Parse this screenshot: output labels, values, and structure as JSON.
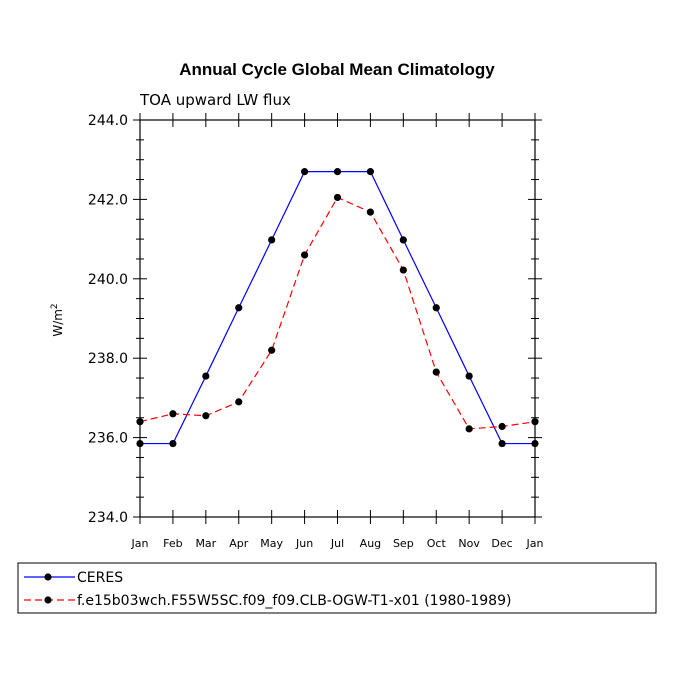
{
  "chart_data": {
    "type": "line",
    "title": "Annual Cycle Global Mean Climatology",
    "subtitle": "TOA upward LW flux",
    "xlabel": "",
    "ylabel": "W/m",
    "ylabel_superscript": "2",
    "ylim": [
      234.0,
      244.0
    ],
    "yticks": [
      "234.0",
      "236.0",
      "238.0",
      "240.0",
      "242.0",
      "244.0"
    ],
    "ytick_values": [
      234,
      236,
      238,
      240,
      242,
      244
    ],
    "categories": [
      "Jan",
      "Feb",
      "Mar",
      "Apr",
      "May",
      "Jun",
      "Jul",
      "Aug",
      "Sep",
      "Oct",
      "Nov",
      "Dec",
      "Jan"
    ],
    "series": [
      {
        "name": "CERES",
        "color": "#0000ff",
        "dash": "solid",
        "values": [
          235.85,
          235.85,
          237.55,
          239.27,
          240.98,
          242.7,
          242.7,
          242.7,
          240.98,
          239.27,
          237.55,
          235.85,
          235.85
        ]
      },
      {
        "name": "f.e15b03wch.F55W5SC.f09_f09.CLB-OGW-T1-x01 (1980-1989)",
        "color": "#ff0000",
        "dash": "dashed",
        "values": [
          236.4,
          236.6,
          236.55,
          236.9,
          238.2,
          240.6,
          242.05,
          241.68,
          240.22,
          237.65,
          236.22,
          236.28,
          236.4
        ]
      }
    ],
    "grid": false,
    "legend_position": "bottom-left"
  }
}
